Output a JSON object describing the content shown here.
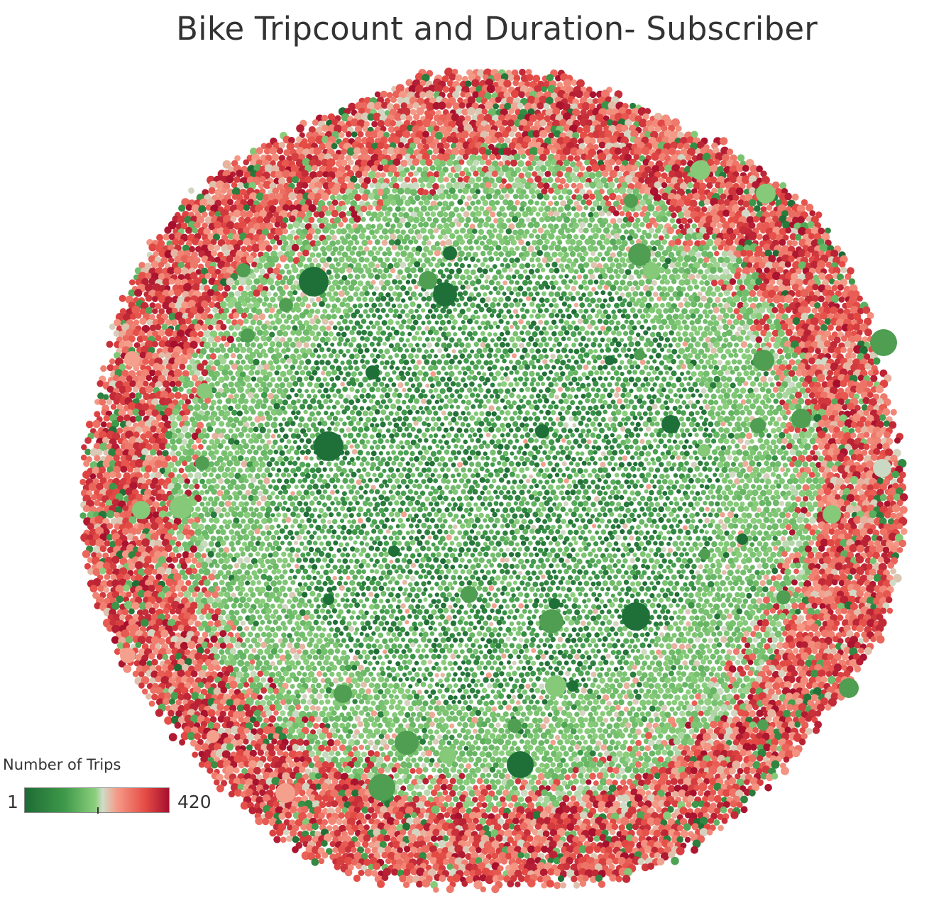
{
  "chart_data": {
    "type": "bubble",
    "title": "Bike Tripcount and Duration- Subscriber",
    "legend": {
      "title": "Number of Trips",
      "min": 1,
      "max": 420,
      "min_label": "1",
      "max_label": "420",
      "placement": "bottom-left",
      "colors": [
        "#1e6b35",
        "#3f9a4a",
        "#8ccf7d",
        "#cfdcc8",
        "#f59a87",
        "#e44a44",
        "#a50f2d"
      ]
    }
  }
}
